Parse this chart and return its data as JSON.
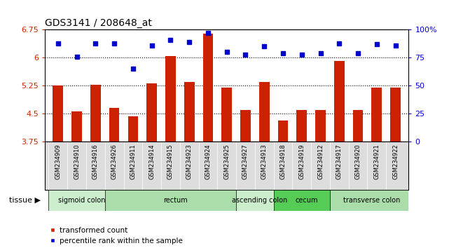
{
  "title": "GDS3141 / 208648_at",
  "samples": [
    "GSM234909",
    "GSM234910",
    "GSM234916",
    "GSM234926",
    "GSM234911",
    "GSM234914",
    "GSM234915",
    "GSM234923",
    "GSM234924",
    "GSM234925",
    "GSM234927",
    "GSM234913",
    "GSM234918",
    "GSM234919",
    "GSM234912",
    "GSM234917",
    "GSM234920",
    "GSM234921",
    "GSM234922"
  ],
  "bar_values": [
    5.25,
    4.55,
    5.28,
    4.65,
    4.42,
    5.3,
    6.05,
    5.35,
    6.65,
    5.2,
    4.6,
    5.35,
    4.32,
    4.6,
    4.6,
    5.92,
    4.6,
    5.2,
    5.2
  ],
  "dot_values": [
    88,
    76,
    88,
    88,
    65,
    86,
    91,
    89,
    97,
    80,
    78,
    85,
    79,
    78,
    79,
    88,
    79,
    87,
    86
  ],
  "tissues": [
    {
      "label": "sigmoid colon",
      "start": 0,
      "end": 3,
      "color": "#cceecc"
    },
    {
      "label": "rectum",
      "start": 3,
      "end": 10,
      "color": "#aaddaa"
    },
    {
      "label": "ascending colon",
      "start": 10,
      "end": 12,
      "color": "#cceecc"
    },
    {
      "label": "cecum",
      "start": 12,
      "end": 15,
      "color": "#55cc55"
    },
    {
      "label": "transverse colon",
      "start": 15,
      "end": 19,
      "color": "#aaddaa"
    }
  ],
  "ylim_left": [
    3.75,
    6.75
  ],
  "ylim_right": [
    0,
    100
  ],
  "yticks_left": [
    3.75,
    4.5,
    5.25,
    6.0,
    6.75
  ],
  "ytick_labels_left": [
    "3.75",
    "4.5",
    "5.25",
    "6",
    "6.75"
  ],
  "yticks_right": [
    0,
    25,
    50,
    75,
    100
  ],
  "ytick_labels_right": [
    "0",
    "25",
    "50",
    "75",
    "100%"
  ],
  "hlines": [
    4.5,
    5.25,
    6.0
  ],
  "bar_color": "#cc2200",
  "dot_color": "#0000cc",
  "bar_width": 0.55,
  "bg_color": "#ffffff",
  "label_red": "transformed count",
  "label_blue": "percentile rank within the sample",
  "tissue_label": "tissue"
}
